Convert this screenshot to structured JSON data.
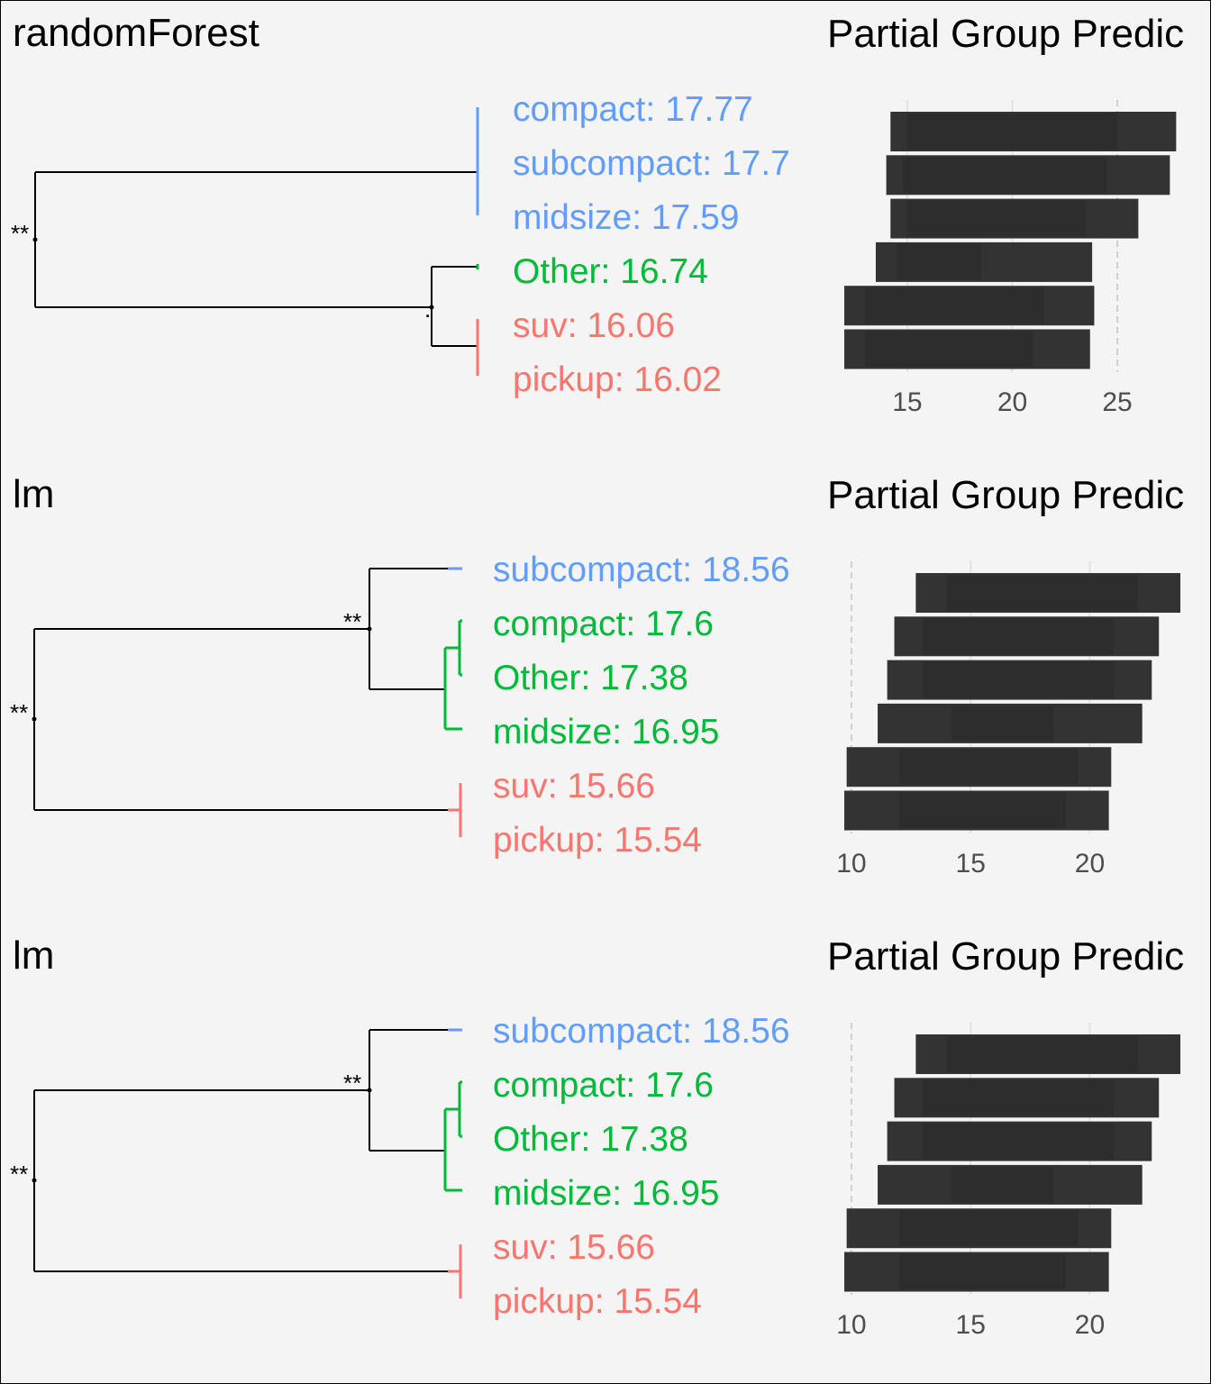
{
  "colors": {
    "background": "#f4f4f4",
    "cluster_blue": "#619cff",
    "cluster_green": "#00ba38",
    "cluster_red": "#f8766d",
    "tree_line": "#000000",
    "bar_fill": "#333333",
    "grid": "#e2e2e2",
    "dashed_ref": "#cfcfcf",
    "tick_text": "#4d4d4d"
  },
  "chart_data": [
    {
      "type": "bar",
      "orientation": "horizontal",
      "model_title": "randomForest",
      "title": "Partial Group Predic",
      "dendrogram": {
        "leaves": [
          {
            "label": "compact: 17.77",
            "cluster": "blue"
          },
          {
            "label": "subcompact: 17.7",
            "cluster": "blue"
          },
          {
            "label": "midsize: 17.59",
            "cluster": "blue"
          },
          {
            "label": "Other: 16.74",
            "cluster": "green"
          },
          {
            "label": "suv: 16.06",
            "cluster": "red"
          },
          {
            "label": "pickup: 16.02",
            "cluster": "red"
          }
        ],
        "significance": [
          {
            "node": "root",
            "label": "**"
          },
          {
            "node": "other-red",
            "label": "."
          }
        ]
      },
      "categories": [
        "compact",
        "subcompact",
        "midsize",
        "Other",
        "suv",
        "pickup"
      ],
      "ranges": [
        [
          14.2,
          27.8
        ],
        [
          14.0,
          27.5
        ],
        [
          14.2,
          26.0
        ],
        [
          13.5,
          23.8
        ],
        [
          12.0,
          23.9
        ],
        [
          12.0,
          23.7
        ]
      ],
      "inner_ranges": [
        [
          15.0,
          25.0
        ],
        [
          14.8,
          24.5
        ],
        [
          15.0,
          23.5
        ],
        [
          14.5,
          18.5
        ],
        [
          13.0,
          21.5
        ],
        [
          13.0,
          21.0
        ]
      ],
      "xlim": [
        12,
        28
      ],
      "xticks": [
        15,
        20,
        25
      ],
      "tick_labels": [
        "15",
        "20",
        "25"
      ],
      "dashed_ref": 25,
      "grid": true
    },
    {
      "type": "bar",
      "orientation": "horizontal",
      "model_title": "lm",
      "title": "Partial Group Predic",
      "dendrogram": {
        "leaves": [
          {
            "label": "subcompact: 18.56",
            "cluster": "blue"
          },
          {
            "label": "compact: 17.6",
            "cluster": "green"
          },
          {
            "label": "Other: 17.38",
            "cluster": "green"
          },
          {
            "label": "midsize: 16.95",
            "cluster": "green"
          },
          {
            "label": "suv: 15.66",
            "cluster": "red"
          },
          {
            "label": "pickup: 15.54",
            "cluster": "red"
          }
        ],
        "significance": [
          {
            "node": "root",
            "label": "**"
          },
          {
            "node": "sub-green",
            "label": "**"
          }
        ]
      },
      "categories": [
        "subcompact",
        "compact",
        "Other",
        "midsize",
        "suv",
        "pickup"
      ],
      "ranges": [
        [
          12.7,
          23.8
        ],
        [
          11.8,
          22.9
        ],
        [
          11.5,
          22.6
        ],
        [
          11.1,
          22.2
        ],
        [
          9.8,
          20.9
        ],
        [
          9.7,
          20.8
        ]
      ],
      "inner_ranges": [
        [
          14.0,
          22.0
        ],
        [
          13.0,
          21.0
        ],
        [
          13.0,
          21.0
        ],
        [
          14.2,
          18.5
        ],
        [
          12.0,
          19.5
        ],
        [
          12.0,
          19.0
        ]
      ],
      "xlim": [
        9.7,
        23.8
      ],
      "xticks": [
        10,
        15,
        20
      ],
      "tick_labels": [
        "10",
        "15",
        "20"
      ],
      "dashed_ref": 10,
      "grid": true
    },
    {
      "type": "bar",
      "orientation": "horizontal",
      "model_title": "lm",
      "title": "Partial Group Predic",
      "dendrogram": {
        "leaves": [
          {
            "label": "subcompact: 18.56",
            "cluster": "blue"
          },
          {
            "label": "compact: 17.6",
            "cluster": "green"
          },
          {
            "label": "Other: 17.38",
            "cluster": "green"
          },
          {
            "label": "midsize: 16.95",
            "cluster": "green"
          },
          {
            "label": "suv: 15.66",
            "cluster": "red"
          },
          {
            "label": "pickup: 15.54",
            "cluster": "red"
          }
        ],
        "significance": [
          {
            "node": "root",
            "label": "**"
          },
          {
            "node": "sub-green",
            "label": "**"
          }
        ]
      },
      "categories": [
        "subcompact",
        "compact",
        "Other",
        "midsize",
        "suv",
        "pickup"
      ],
      "ranges": [
        [
          12.7,
          23.8
        ],
        [
          11.8,
          22.9
        ],
        [
          11.5,
          22.6
        ],
        [
          11.1,
          22.2
        ],
        [
          9.8,
          20.9
        ],
        [
          9.7,
          20.8
        ]
      ],
      "inner_ranges": [
        [
          14.0,
          22.0
        ],
        [
          13.0,
          21.0
        ],
        [
          13.0,
          21.0
        ],
        [
          14.2,
          18.5
        ],
        [
          12.0,
          19.5
        ],
        [
          12.0,
          19.0
        ]
      ],
      "xlim": [
        9.7,
        23.8
      ],
      "xticks": [
        10,
        15,
        20
      ],
      "tick_labels": [
        "10",
        "15",
        "20"
      ],
      "dashed_ref": 10,
      "grid": true
    }
  ]
}
